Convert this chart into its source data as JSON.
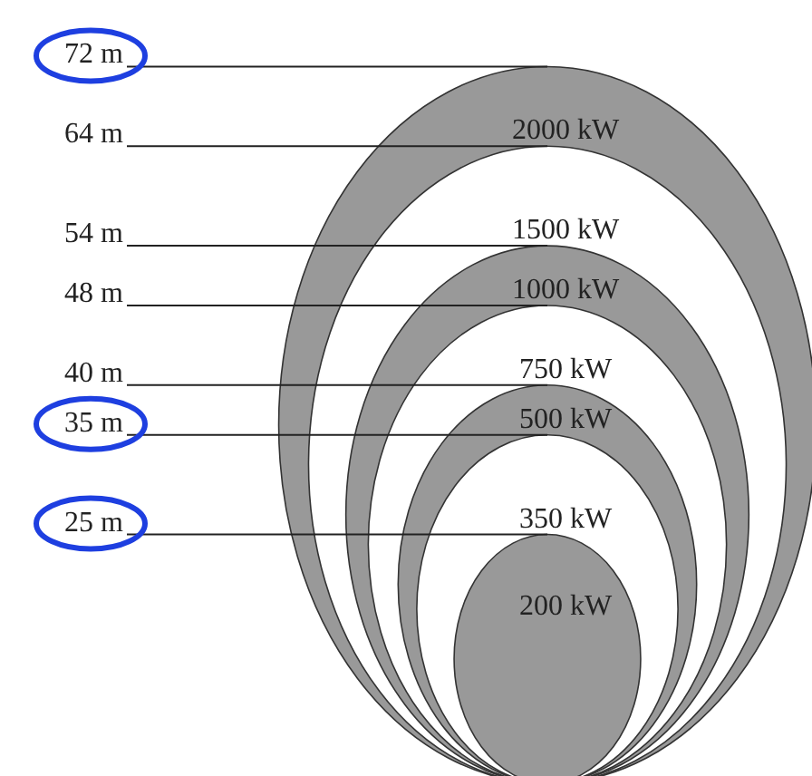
{
  "chart_data": {
    "type": "other",
    "categories": [
      "2000 kW",
      "1500 kW",
      "1000 kW",
      "750 kW",
      "500 kW",
      "350 kW",
      "200 kW"
    ],
    "values": [
      72,
      64,
      54,
      48,
      40,
      35,
      25
    ],
    "value_labels": [
      "72 m",
      "64 m",
      "54 m",
      "48 m",
      "40 m",
      "35 m",
      "25 m"
    ],
    "colors": [
      "#999999",
      "#ffffff",
      "#999999",
      "#ffffff",
      "#999999",
      "#ffffff",
      "#999999"
    ]
  }
}
